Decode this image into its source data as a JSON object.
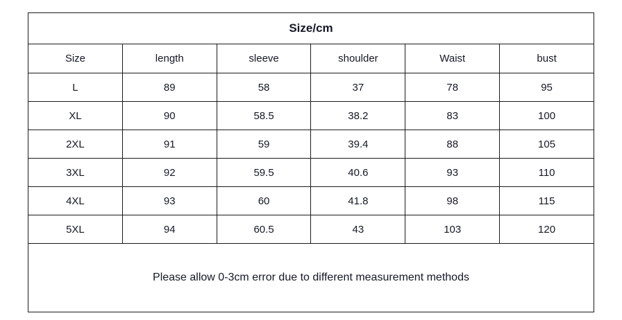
{
  "chart_data": {
    "type": "table",
    "title": "Size/cm",
    "columns": [
      "Size",
      "length",
      "sleeve",
      "shoulder",
      "Waist",
      "bust"
    ],
    "rows": [
      [
        "L",
        "89",
        "58",
        "37",
        "78",
        "95"
      ],
      [
        "XL",
        "90",
        "58.5",
        "38.2",
        "83",
        "100"
      ],
      [
        "2XL",
        "91",
        "59",
        "39.4",
        "88",
        "105"
      ],
      [
        "3XL",
        "92",
        "59.5",
        "40.6",
        "93",
        "110"
      ],
      [
        "4XL",
        "93",
        "60",
        "41.8",
        "98",
        "115"
      ],
      [
        "5XL",
        "94",
        "60.5",
        "43",
        "103",
        "120"
      ]
    ],
    "note": "Please allow 0-3cm error due to different measurement methods",
    "layout": {
      "grid": true,
      "border_color": "#1a1a1a",
      "background": "#ffffff"
    }
  }
}
